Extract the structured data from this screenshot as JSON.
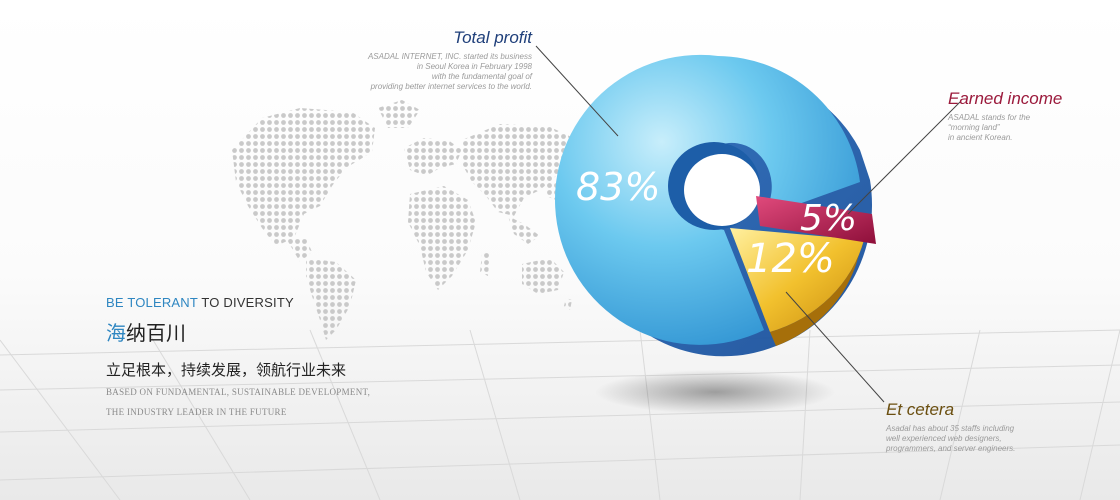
{
  "chart_data": {
    "type": "pie",
    "categories": [
      "Total profit",
      "Earned income",
      "Et cetera"
    ],
    "values": [
      83,
      5,
      12
    ],
    "value_labels": [
      "83%",
      "5%",
      "12%"
    ],
    "colors": [
      "#49b8e6",
      "#c2185b",
      "#f2c12e"
    ]
  },
  "callouts": {
    "total_profit": {
      "title": "Total profit",
      "desc": [
        "ASADAL INTERNET, INC. started its business",
        "in Seoul Korea in February 1998",
        "with the fundamental goal of",
        "providing better internet services to the world."
      ]
    },
    "earned_income": {
      "title": "Earned income",
      "desc": [
        "ASADAL stands for the",
        "“morning land”",
        "in ancient Korean."
      ]
    },
    "et_cetera": {
      "title": "Et cetera",
      "desc": [
        "Asadal has about 35 staffs including",
        "well experienced web designers,",
        "programmers, and server engineers."
      ]
    }
  },
  "left": {
    "tagline_accent": "BE TOLERANT",
    "tagline_rest": " TO DIVERSITY",
    "cn_title_accent": "海",
    "cn_title_rest": "纳百川",
    "cn_sub": "立足根本，持续发展，领航行业未来",
    "en_line1": "BASED ON FUNDAMENTAL, SUSTAINABLE DEVELOPMENT,",
    "en_line2": "THE INDUSTRY LEADER IN THE FUTURE"
  },
  "colors": {
    "title_blue": "#1f3f7a",
    "title_crimson": "#9b1a3c",
    "title_gold": "#6b4f10",
    "accent_blue": "#2e86c1"
  }
}
